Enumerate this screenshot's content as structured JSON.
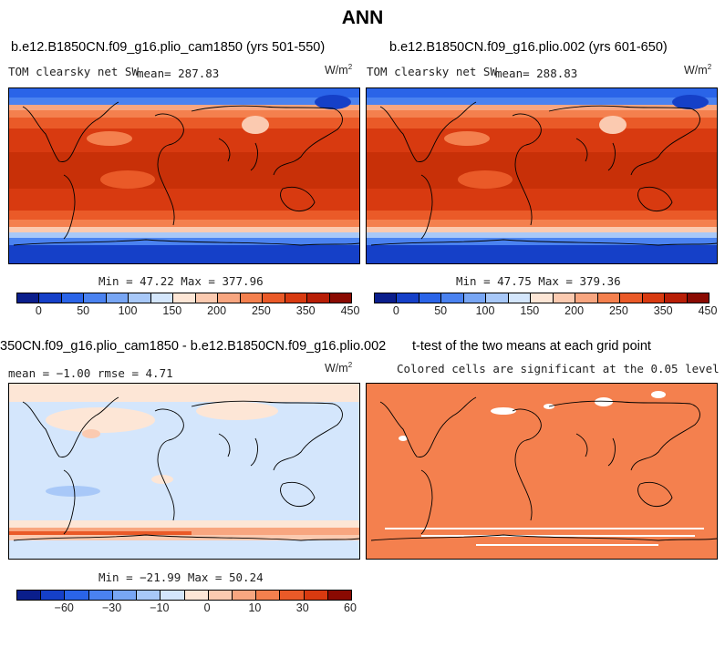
{
  "title": "ANN",
  "panels": [
    {
      "title": "b.e12.B1850CN.f09_g16.plio_cam1850 (yrs 501-550)",
      "variable": "TOM clearsky net SW",
      "stat": "mean= 287.83",
      "units": "W/m",
      "units_sup": "2",
      "minmax": "Min =  47.22 Max = 377.96"
    },
    {
      "title": "b.e12.B1850CN.f09_g16.plio.002 (yrs 601-650)",
      "variable": "TOM clearsky net SW",
      "stat": "mean= 288.83",
      "units": "W/m",
      "units_sup": "2",
      "minmax": "Min =  47.75 Max = 379.36"
    },
    {
      "title": "350CN.f09_g16.plio_cam1850 - b.e12.B1850CN.f09_g16.plio.002",
      "stat": "mean =  −1.00     rmse =    4.71",
      "units": "W/m",
      "units_sup": "2",
      "minmax": "Min = −21.99 Max =  50.24"
    },
    {
      "title": "t-test of the two means at each grid point",
      "note": "Colored cells are significant at the 0.05 level"
    }
  ],
  "colorbars": {
    "absolute": {
      "colors": [
        "#0a1e8c",
        "#1540c8",
        "#2a64e8",
        "#4a82f0",
        "#78a6f4",
        "#a8c8f8",
        "#d4e6fc",
        "#fde6d6",
        "#fbcab0",
        "#f8a680",
        "#f4804e",
        "#ea5a28",
        "#d83a10",
        "#b81e06",
        "#8a0a02"
      ],
      "ticks": [
        "0",
        "50",
        "100",
        "150",
        "200",
        "250",
        "350",
        "450"
      ]
    },
    "difference": {
      "colors": [
        "#0a1e8c",
        "#1540c8",
        "#2a64e8",
        "#4a82f0",
        "#78a6f4",
        "#a8c8f8",
        "#d4e6fc",
        "#fde6d6",
        "#fbcab0",
        "#f8a680",
        "#f4804e",
        "#ea5a28",
        "#d83a10",
        "#8a0a02"
      ],
      "ticks": [
        "−60",
        "−30",
        "−10",
        "0",
        "10",
        "30",
        "60"
      ]
    }
  },
  "chart_data": [
    {
      "type": "heatmap",
      "title": "b.e12.B1850CN.f09_g16.plio_cam1850 (yrs 501-550)",
      "variable": "TOM clearsky net SW",
      "units": "W/m2",
      "mean": 287.83,
      "min": 47.22,
      "max": 377.96,
      "contour_levels": [
        0,
        50,
        100,
        150,
        200,
        250,
        350,
        450
      ]
    },
    {
      "type": "heatmap",
      "title": "b.e12.B1850CN.f09_g16.plio.002 (yrs 601-650)",
      "variable": "TOM clearsky net SW",
      "units": "W/m2",
      "mean": 288.83,
      "min": 47.75,
      "max": 379.36,
      "contour_levels": [
        0,
        50,
        100,
        150,
        200,
        250,
        350,
        450
      ]
    },
    {
      "type": "heatmap",
      "title": "350CN.f09_g16.plio_cam1850 - b.e12.B1850CN.f09_g16.plio.002",
      "units": "W/m2",
      "mean": -1.0,
      "rmse": 4.71,
      "min": -21.99,
      "max": 50.24,
      "contour_levels": [
        -60,
        -30,
        -10,
        0,
        10,
        30,
        60
      ]
    },
    {
      "type": "heatmap",
      "title": "t-test of the two means at each grid point",
      "note": "Colored cells are significant at the 0.05 level",
      "significance_level": 0.05
    }
  ]
}
